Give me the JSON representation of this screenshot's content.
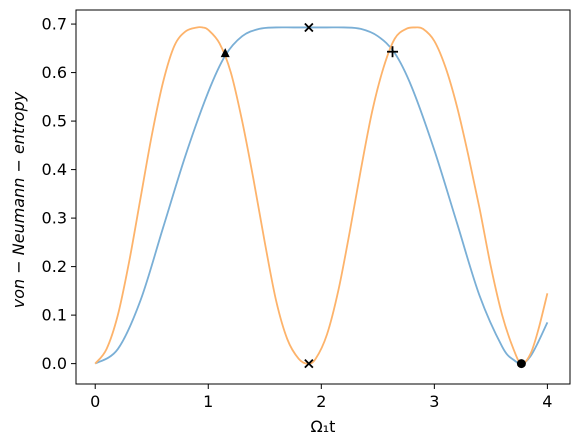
{
  "chart_data": {
    "type": "line",
    "title": "",
    "xlabel": "Ω₁t",
    "ylabel": "von − Neumann − entropy",
    "xlim": [
      -0.17,
      4.2
    ],
    "ylim": [
      -0.042,
      0.729
    ],
    "xticks": [
      0,
      1,
      2,
      3,
      4
    ],
    "xtick_labels": [
      "0",
      "1",
      "2",
      "3",
      "4"
    ],
    "yticks": [
      0.0,
      0.1,
      0.2,
      0.3,
      0.4,
      0.5,
      0.6,
      0.7
    ],
    "ytick_labels": [
      "0.0",
      "0.1",
      "0.2",
      "0.3",
      "0.4",
      "0.5",
      "0.6",
      "0.7"
    ],
    "grid": false,
    "legend": null,
    "colors": {
      "blue": "#7aafd6",
      "orange": "#fdb36b",
      "marker": "#000000"
    },
    "series": [
      {
        "color": "#7aafd6",
        "x": [
          0,
          0.2,
          0.4,
          0.6,
          0.8,
          1.0,
          1.15,
          1.3,
          1.45,
          1.6,
          1.75,
          1.9,
          2.05,
          2.2,
          2.35,
          2.5,
          2.65,
          2.8,
          3.0,
          3.2,
          3.4,
          3.6,
          3.7,
          3.78,
          3.85,
          3.92,
          4.0
        ],
        "y": [
          0.0,
          0.03,
          0.13,
          0.28,
          0.43,
          0.56,
          0.635,
          0.675,
          0.69,
          0.693,
          0.693,
          0.693,
          0.693,
          0.693,
          0.69,
          0.675,
          0.64,
          0.57,
          0.44,
          0.29,
          0.14,
          0.035,
          0.008,
          0.0,
          0.015,
          0.045,
          0.085
        ]
      },
      {
        "color": "#fdb36b",
        "x": [
          0,
          0.1,
          0.2,
          0.3,
          0.4,
          0.5,
          0.6,
          0.7,
          0.8,
          0.9,
          0.95,
          1.0,
          1.1,
          1.2,
          1.3,
          1.4,
          1.5,
          1.6,
          1.7,
          1.8,
          1.88,
          1.95,
          2.05,
          2.15,
          2.25,
          2.35,
          2.45,
          2.55,
          2.65,
          2.75,
          2.83,
          2.9,
          3.0,
          3.1,
          3.2,
          3.3,
          3.4,
          3.5,
          3.6,
          3.7,
          3.77,
          3.85,
          3.92,
          4.0
        ],
        "y": [
          0.0,
          0.03,
          0.1,
          0.21,
          0.34,
          0.47,
          0.58,
          0.655,
          0.685,
          0.693,
          0.693,
          0.688,
          0.66,
          0.6,
          0.5,
          0.38,
          0.25,
          0.13,
          0.05,
          0.01,
          0.0,
          0.01,
          0.06,
          0.15,
          0.27,
          0.4,
          0.52,
          0.61,
          0.67,
          0.69,
          0.693,
          0.69,
          0.665,
          0.61,
          0.53,
          0.43,
          0.32,
          0.2,
          0.1,
          0.03,
          0.0,
          0.02,
          0.07,
          0.145
        ]
      }
    ],
    "markers": [
      {
        "symbol": "triangle",
        "x": 1.15,
        "y": 0.64
      },
      {
        "symbol": "x",
        "x": 1.89,
        "y": 0.693
      },
      {
        "symbol": "x",
        "x": 1.89,
        "y": 0.0
      },
      {
        "symbol": "plus",
        "x": 2.63,
        "y": 0.643
      },
      {
        "symbol": "circle",
        "x": 3.77,
        "y": 0.0
      }
    ]
  }
}
